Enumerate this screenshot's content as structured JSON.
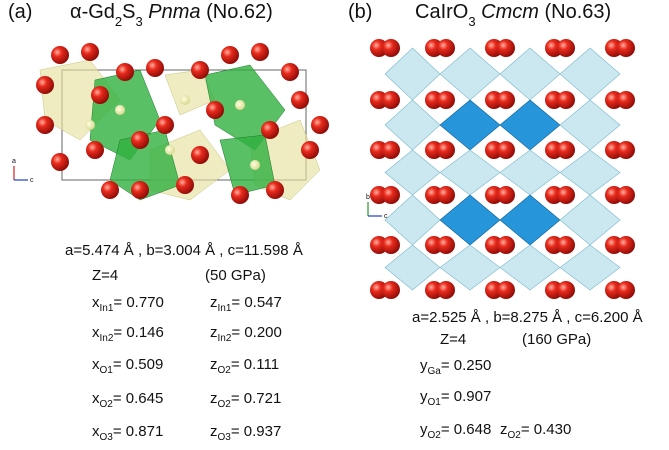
{
  "panels": [
    {
      "label": "(a)",
      "title": [
        {
          "text": "α-Gd"
        },
        {
          "text": "2",
          "sub": true
        },
        {
          "text": "S"
        },
        {
          "text": "3",
          "sub": true
        },
        {
          "text": " Pnma",
          "italic": true
        },
        {
          "text": " (No.62)"
        }
      ],
      "axes": [
        "a",
        "c"
      ],
      "lattice": "a=5.474 Å , b=3.004 Å , c=11.598 Å",
      "z": "Z=4",
      "pressure": "(50 GPa)",
      "parameters": [
        [
          {
            "symbol": "x",
            "subscript": "In1",
            "value": "= 0.770"
          },
          {
            "symbol": "z",
            "subscript": "In1",
            "value": "= 0.547"
          }
        ],
        [
          {
            "symbol": "x",
            "subscript": "In2",
            "value": "= 0.146"
          },
          {
            "symbol": "z",
            "subscript": "In2",
            "value": "= 0.200"
          }
        ],
        [
          {
            "symbol": "x",
            "subscript": "O1",
            "value": "= 0.509"
          },
          {
            "symbol": "z",
            "subscript": "O2",
            "value": "= 0.111"
          }
        ],
        [
          {
            "symbol": "x",
            "subscript": "O2",
            "value": "= 0.645"
          },
          {
            "symbol": "z",
            "subscript": "O2",
            "value": "= 0.721"
          }
        ],
        [
          {
            "symbol": "x",
            "subscript": "O3",
            "value": "= 0.871"
          },
          {
            "symbol": "z",
            "subscript": "O3",
            "value": "= 0.937"
          }
        ]
      ]
    },
    {
      "label": "(b)",
      "title": [
        {
          "text": "CaIrO"
        },
        {
          "text": "3",
          "sub": true
        },
        {
          "text": " Cmcm",
          "italic": true
        },
        {
          "text": " (No.63)"
        }
      ],
      "axes": [
        "b",
        "c"
      ],
      "lattice": "a=2.525 Å , b=8.275 Å , c=6.200 Å",
      "z": "Z=4",
      "pressure": "(160 GPa)",
      "parameters": [
        [
          {
            "symbol": "y",
            "subscript": "Ga",
            "value": "= 0.250"
          }
        ],
        [
          {
            "symbol": "y",
            "subscript": "O1",
            "value": "= 0.907"
          }
        ],
        [
          {
            "symbol": "y",
            "subscript": "O2",
            "value": "= 0.648"
          },
          {
            "symbol": "z",
            "subscript": "O2",
            "value": "= 0.430"
          }
        ]
      ]
    }
  ]
}
